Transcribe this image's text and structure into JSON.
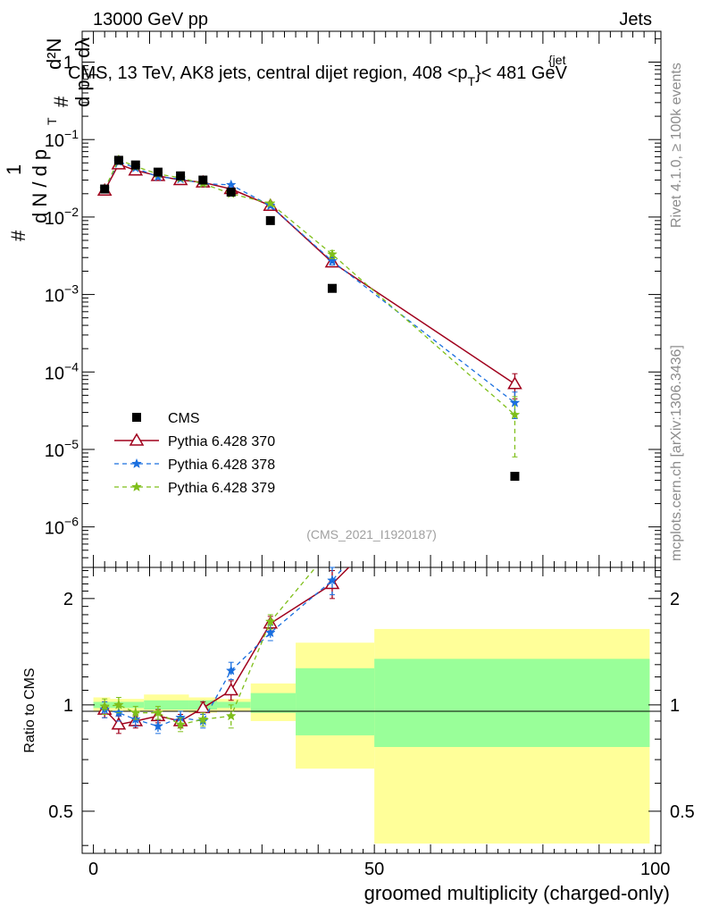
{
  "header": {
    "left": "13000 GeV pp",
    "right": "Jets"
  },
  "side_labels": {
    "rivet": "Rivet 4.1.0, ≥ 100k events",
    "mcplots": "mcplots.cern.ch [arXiv:1306.3436]"
  },
  "chart_data": {
    "type": "line",
    "title": "CMS, 13 TeV, AK8 jets, central dijet region, 408 <p",
    "title_sup": "{jet",
    "title_sub": "T",
    "title_end": "}< 481 GeV",
    "analysis_tag": "(CMS_2021_I1920187)",
    "xlabel": "groomed multiplicity (charged-only)",
    "xlim": [
      -2,
      101
    ],
    "x_ticks": [
      0,
      50,
      100
    ],
    "main_panel": {
      "yscale": "log",
      "ylim": [
        3e-07,
        2.5
      ],
      "ylabel": {
        "hash1": "#",
        "one": "1",
        "dN": "d N / d p",
        "T1": "T",
        "hash2": "#",
        "d2N": "d²N",
        "dpT": "d p",
        "T2": "T",
        "dl": "dλ"
      },
      "y_ticks": [
        {
          "value": 1e-06,
          "base": "10",
          "exp": "−6"
        },
        {
          "value": 1e-05,
          "base": "10",
          "exp": "−5"
        },
        {
          "value": 0.0001,
          "base": "10",
          "exp": "−4"
        },
        {
          "value": 0.001,
          "base": "10",
          "exp": "−3"
        },
        {
          "value": 0.01,
          "base": "10",
          "exp": "−2"
        },
        {
          "value": 0.1,
          "base": "10",
          "exp": "−1"
        },
        {
          "value": 1,
          "base": "1",
          "exp": ""
        }
      ],
      "data": {
        "name": "CMS",
        "color": "#000000",
        "points": [
          [
            2,
            0.023
          ],
          [
            4.5,
            0.054
          ],
          [
            7.5,
            0.047
          ],
          [
            11.5,
            0.038
          ],
          [
            15.5,
            0.034
          ],
          [
            19.5,
            0.03
          ],
          [
            24.5,
            0.021
          ],
          [
            31.5,
            0.009
          ],
          [
            42.5,
            0.0012
          ],
          [
            75,
            4.5e-06
          ]
        ]
      },
      "series": [
        {
          "name": "Pythia 6.428 370",
          "color": "#a0001c",
          "style": "solid",
          "marker": "triangle",
          "points": [
            [
              2,
              0.022
            ],
            [
              4.5,
              0.048
            ],
            [
              7.5,
              0.04
            ],
            [
              11.5,
              0.034
            ],
            [
              15.5,
              0.03
            ],
            [
              19.5,
              0.028
            ],
            [
              24.5,
              0.023
            ],
            [
              31.5,
              0.014
            ],
            [
              42.5,
              0.0026
            ],
            [
              75,
              7e-05
            ]
          ],
          "err": [
            0,
            0,
            0,
            0,
            0,
            0,
            0,
            0,
            0.0003,
            2.5e-05
          ]
        },
        {
          "name": "Pythia 6.428 378",
          "color": "#1a6fdf",
          "style": "dashed",
          "marker": "star",
          "points": [
            [
              2,
              0.023
            ],
            [
              4.5,
              0.052
            ],
            [
              7.5,
              0.043
            ],
            [
              11.5,
              0.033
            ],
            [
              15.5,
              0.031
            ],
            [
              19.5,
              0.027
            ],
            [
              24.5,
              0.026
            ],
            [
              31.5,
              0.014
            ],
            [
              42.5,
              0.0027
            ],
            [
              75,
              4e-05
            ]
          ],
          "err": [
            0,
            0,
            0,
            0,
            0,
            0,
            0,
            0,
            0.0003,
            1.5e-05
          ]
        },
        {
          "name": "Pythia 6.428 379",
          "color": "#7fbf1a",
          "style": "dashed",
          "marker": "star",
          "points": [
            [
              2,
              0.023
            ],
            [
              4.5,
              0.055
            ],
            [
              7.5,
              0.045
            ],
            [
              11.5,
              0.036
            ],
            [
              15.5,
              0.032
            ],
            [
              19.5,
              0.027
            ],
            [
              24.5,
              0.02
            ],
            [
              31.5,
              0.015
            ],
            [
              42.5,
              0.0033
            ],
            [
              75,
              2.8e-05
            ]
          ],
          "err": [
            0,
            0,
            0,
            0,
            0,
            0,
            0,
            0,
            0.0004,
            2e-05
          ]
        }
      ]
    },
    "ratio_panel": {
      "ylabel": "Ratio to CMS",
      "yscale": "log",
      "ylim": [
        0.38,
        2.45
      ],
      "y_ticks": [
        {
          "value": 0.5,
          "label": "0.5"
        },
        {
          "value": 1,
          "label": "1"
        },
        {
          "value": 2,
          "label": "2"
        }
      ],
      "bands": [
        {
          "x0": 0,
          "x1": 3,
          "y_lo": 0.96,
          "y_hi": 1.05,
          "g_lo": 0.98,
          "g_hi": 1.02
        },
        {
          "x0": 3,
          "x1": 9,
          "y_lo": 0.96,
          "y_hi": 1.04,
          "g_lo": 0.98,
          "g_hi": 1.02
        },
        {
          "x0": 9,
          "x1": 17,
          "y_lo": 0.96,
          "y_hi": 1.07,
          "g_lo": 0.97,
          "g_hi": 1.03
        },
        {
          "x0": 17,
          "x1": 22,
          "y_lo": 0.95,
          "y_hi": 1.05,
          "g_lo": 0.97,
          "g_hi": 1.03
        },
        {
          "x0": 22,
          "x1": 28,
          "y_lo": 0.96,
          "y_hi": 1.04,
          "g_lo": 0.98,
          "g_hi": 1.02
        },
        {
          "x0": 28,
          "x1": 36,
          "y_lo": 0.9,
          "y_hi": 1.15,
          "g_lo": 0.95,
          "g_hi": 1.08
        },
        {
          "x0": 36,
          "x1": 50,
          "y_lo": 0.66,
          "y_hi": 1.5,
          "g_lo": 0.82,
          "g_hi": 1.27
        },
        {
          "x0": 50,
          "x1": 99,
          "y_lo": 0.405,
          "y_hi": 1.64,
          "g_lo": 0.76,
          "g_hi": 1.35
        }
      ],
      "series": [
        {
          "name": "Pythia 6.428 370",
          "color": "#a0001c",
          "style": "solid",
          "marker": "triangle",
          "points": [
            [
              2,
              0.97
            ],
            [
              4.5,
              0.88
            ],
            [
              7.5,
              0.9
            ],
            [
              11.5,
              0.93
            ],
            [
              15.5,
              0.9
            ],
            [
              19.5,
              0.98
            ],
            [
              24.5,
              1.1
            ],
            [
              31.5,
              1.7
            ],
            [
              42.5,
              2.2
            ],
            [
              46,
              2.5
            ]
          ],
          "err": [
            0.05,
            0.05,
            0.04,
            0.04,
            0.04,
            0.04,
            0.07,
            0.08,
            0.2,
            0
          ]
        },
        {
          "name": "Pythia 6.428 378",
          "color": "#1a6fdf",
          "style": "dashed",
          "marker": "star",
          "points": [
            [
              2,
              0.97
            ],
            [
              4.5,
              0.95
            ],
            [
              7.5,
              0.91
            ],
            [
              11.5,
              0.87
            ],
            [
              15.5,
              0.92
            ],
            [
              19.5,
              0.9
            ],
            [
              24.5,
              1.25
            ],
            [
              31.5,
              1.6
            ],
            [
              42.5,
              2.25
            ],
            [
              45,
              2.5
            ]
          ],
          "err": [
            0.05,
            0.05,
            0.04,
            0.04,
            0.04,
            0.04,
            0.07,
            0.08,
            0.2,
            0
          ]
        },
        {
          "name": "Pythia 6.428 379",
          "color": "#7fbf1a",
          "style": "dashed",
          "marker": "star",
          "points": [
            [
              2,
              0.99
            ],
            [
              4.5,
              1.0
            ],
            [
              7.5,
              0.95
            ],
            [
              11.5,
              0.95
            ],
            [
              15.5,
              0.88
            ],
            [
              19.5,
              0.91
            ],
            [
              24.5,
              0.93
            ],
            [
              31.5,
              1.72
            ],
            [
              40,
              2.5
            ]
          ],
          "err": [
            0.05,
            0.05,
            0.04,
            0.04,
            0.04,
            0.04,
            0.07,
            0.08,
            0
          ]
        }
      ]
    }
  }
}
